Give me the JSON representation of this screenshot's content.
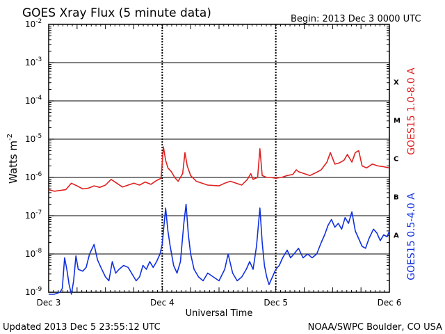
{
  "chart_data": {
    "type": "line",
    "title": "GOES Xray Flux (5 minute data)",
    "begin_label": "Begin:  2013 Dec 3 0000 UTC",
    "xlabel": "Universal Time",
    "ylabel": "Watts m",
    "ylabel_exponent": "-2",
    "x_unit": "days since 2013 Dec 3 0000 UTC",
    "xlim": [
      0,
      3
    ],
    "x_ticks": [
      {
        "label": "Dec 3",
        "value": 0
      },
      {
        "label": "Dec 4",
        "value": 1
      },
      {
        "label": "Dec 5",
        "value": 2
      },
      {
        "label": "Dec 6",
        "value": 3
      }
    ],
    "y_scale": "log",
    "ylim_exponent": [
      -9,
      -2
    ],
    "y_ticks": [
      {
        "base": "10",
        "exp": "-9",
        "value": -9
      },
      {
        "base": "10",
        "exp": "-8",
        "value": -8
      },
      {
        "base": "10",
        "exp": "-7",
        "value": -7
      },
      {
        "base": "10",
        "exp": "-6",
        "value": -6
      },
      {
        "base": "10",
        "exp": "-5",
        "value": -5
      },
      {
        "base": "10",
        "exp": "-4",
        "value": -4
      },
      {
        "base": "10",
        "exp": "-3",
        "value": -3
      },
      {
        "base": "10",
        "exp": "-2",
        "value": -2
      }
    ],
    "flare_classes": [
      {
        "label": "A",
        "value": -7.5
      },
      {
        "label": "B",
        "value": -6.5
      },
      {
        "label": "C",
        "value": -5.5
      },
      {
        "label": "M",
        "value": -4.5
      },
      {
        "label": "X",
        "value": -3.5
      }
    ],
    "series": [
      {
        "name": "GOES15 1.0-8.0 A",
        "color": "#e02020",
        "points": [
          [
            0.0,
            -6.32
          ],
          [
            0.05,
            -6.36
          ],
          [
            0.1,
            -6.34
          ],
          [
            0.15,
            -6.32
          ],
          [
            0.2,
            -6.15
          ],
          [
            0.25,
            -6.22
          ],
          [
            0.3,
            -6.3
          ],
          [
            0.35,
            -6.28
          ],
          [
            0.4,
            -6.22
          ],
          [
            0.45,
            -6.26
          ],
          [
            0.5,
            -6.2
          ],
          [
            0.55,
            -6.05
          ],
          [
            0.6,
            -6.15
          ],
          [
            0.65,
            -6.25
          ],
          [
            0.7,
            -6.2
          ],
          [
            0.75,
            -6.15
          ],
          [
            0.8,
            -6.2
          ],
          [
            0.85,
            -6.12
          ],
          [
            0.9,
            -6.18
          ],
          [
            0.95,
            -6.08
          ],
          [
            0.99,
            -6.02
          ],
          [
            1.01,
            -5.2
          ],
          [
            1.03,
            -5.55
          ],
          [
            1.05,
            -5.75
          ],
          [
            1.08,
            -5.85
          ],
          [
            1.11,
            -6.0
          ],
          [
            1.14,
            -6.1
          ],
          [
            1.18,
            -5.9
          ],
          [
            1.2,
            -5.35
          ],
          [
            1.22,
            -5.7
          ],
          [
            1.25,
            -5.95
          ],
          [
            1.3,
            -6.1
          ],
          [
            1.4,
            -6.2
          ],
          [
            1.5,
            -6.22
          ],
          [
            1.55,
            -6.15
          ],
          [
            1.6,
            -6.1
          ],
          [
            1.65,
            -6.15
          ],
          [
            1.7,
            -6.2
          ],
          [
            1.75,
            -6.05
          ],
          [
            1.78,
            -5.9
          ],
          [
            1.8,
            -6.05
          ],
          [
            1.84,
            -6.0
          ],
          [
            1.86,
            -5.25
          ],
          [
            1.88,
            -5.95
          ],
          [
            1.92,
            -6.0
          ],
          [
            1.95,
            -6.0
          ],
          [
            2.0,
            -6.02
          ],
          [
            2.05,
            -6.0
          ],
          [
            2.1,
            -5.95
          ],
          [
            2.15,
            -5.92
          ],
          [
            2.18,
            -5.8
          ],
          [
            2.2,
            -5.85
          ],
          [
            2.25,
            -5.9
          ],
          [
            2.3,
            -5.95
          ],
          [
            2.35,
            -5.88
          ],
          [
            2.4,
            -5.8
          ],
          [
            2.45,
            -5.6
          ],
          [
            2.48,
            -5.35
          ],
          [
            2.52,
            -5.65
          ],
          [
            2.56,
            -5.62
          ],
          [
            2.6,
            -5.55
          ],
          [
            2.63,
            -5.4
          ],
          [
            2.67,
            -5.6
          ],
          [
            2.7,
            -5.35
          ],
          [
            2.73,
            -5.3
          ],
          [
            2.76,
            -5.7
          ],
          [
            2.8,
            -5.75
          ],
          [
            2.85,
            -5.65
          ],
          [
            2.9,
            -5.7
          ],
          [
            2.95,
            -5.72
          ],
          [
            3.0,
            -5.75
          ]
        ]
      },
      {
        "name": "GOES15 0.5-4.0 A",
        "color": "#1030e0",
        "points": [
          [
            0.0,
            -9.05
          ],
          [
            0.05,
            -9.05
          ],
          [
            0.1,
            -9.0
          ],
          [
            0.12,
            -8.9
          ],
          [
            0.14,
            -8.1
          ],
          [
            0.16,
            -8.4
          ],
          [
            0.18,
            -8.8
          ],
          [
            0.2,
            -9.05
          ],
          [
            0.22,
            -8.7
          ],
          [
            0.24,
            -8.05
          ],
          [
            0.26,
            -8.4
          ],
          [
            0.3,
            -8.45
          ],
          [
            0.33,
            -8.35
          ],
          [
            0.36,
            -8.0
          ],
          [
            0.4,
            -7.75
          ],
          [
            0.43,
            -8.15
          ],
          [
            0.46,
            -8.35
          ],
          [
            0.5,
            -8.6
          ],
          [
            0.53,
            -8.7
          ],
          [
            0.56,
            -8.2
          ],
          [
            0.59,
            -8.5
          ],
          [
            0.62,
            -8.4
          ],
          [
            0.66,
            -8.3
          ],
          [
            0.7,
            -8.35
          ],
          [
            0.73,
            -8.5
          ],
          [
            0.77,
            -8.7
          ],
          [
            0.8,
            -8.6
          ],
          [
            0.83,
            -8.3
          ],
          [
            0.86,
            -8.4
          ],
          [
            0.89,
            -8.2
          ],
          [
            0.92,
            -8.35
          ],
          [
            0.95,
            -8.2
          ],
          [
            0.98,
            -8.0
          ],
          [
            1.0,
            -7.75
          ],
          [
            1.03,
            -6.8
          ],
          [
            1.05,
            -7.4
          ],
          [
            1.07,
            -7.8
          ],
          [
            1.1,
            -8.3
          ],
          [
            1.13,
            -8.5
          ],
          [
            1.16,
            -8.2
          ],
          [
            1.19,
            -7.2
          ],
          [
            1.21,
            -6.7
          ],
          [
            1.23,
            -7.5
          ],
          [
            1.25,
            -8.0
          ],
          [
            1.28,
            -8.4
          ],
          [
            1.32,
            -8.6
          ],
          [
            1.36,
            -8.7
          ],
          [
            1.4,
            -8.5
          ],
          [
            1.45,
            -8.6
          ],
          [
            1.5,
            -8.7
          ],
          [
            1.55,
            -8.4
          ],
          [
            1.58,
            -8.0
          ],
          [
            1.62,
            -8.5
          ],
          [
            1.66,
            -8.7
          ],
          [
            1.7,
            -8.6
          ],
          [
            1.74,
            -8.4
          ],
          [
            1.77,
            -8.2
          ],
          [
            1.8,
            -8.4
          ],
          [
            1.83,
            -7.8
          ],
          [
            1.86,
            -6.8
          ],
          [
            1.88,
            -7.7
          ],
          [
            1.9,
            -8.3
          ],
          [
            1.92,
            -8.6
          ],
          [
            1.94,
            -8.8
          ],
          [
            1.97,
            -8.6
          ],
          [
            2.0,
            -8.4
          ],
          [
            2.03,
            -8.3
          ],
          [
            2.06,
            -8.1
          ],
          [
            2.1,
            -7.9
          ],
          [
            2.13,
            -8.1
          ],
          [
            2.16,
            -8.0
          ],
          [
            2.2,
            -7.85
          ],
          [
            2.24,
            -8.1
          ],
          [
            2.28,
            -8.0
          ],
          [
            2.32,
            -8.1
          ],
          [
            2.36,
            -8.0
          ],
          [
            2.4,
            -7.7
          ],
          [
            2.43,
            -7.5
          ],
          [
            2.46,
            -7.25
          ],
          [
            2.49,
            -7.1
          ],
          [
            2.52,
            -7.3
          ],
          [
            2.55,
            -7.2
          ],
          [
            2.58,
            -7.35
          ],
          [
            2.61,
            -7.05
          ],
          [
            2.64,
            -7.2
          ],
          [
            2.67,
            -6.9
          ],
          [
            2.7,
            -7.4
          ],
          [
            2.73,
            -7.6
          ],
          [
            2.76,
            -7.8
          ],
          [
            2.79,
            -7.85
          ],
          [
            2.82,
            -7.6
          ],
          [
            2.86,
            -7.35
          ],
          [
            2.89,
            -7.45
          ],
          [
            2.92,
            -7.65
          ],
          [
            2.95,
            -7.5
          ],
          [
            2.98,
            -7.55
          ],
          [
            3.0,
            -7.4
          ]
        ]
      }
    ]
  },
  "footer": {
    "updated": "Updated 2013 Dec  5 23:55:12 UTC",
    "credit": "NOAA/SWPC Boulder, CO USA"
  }
}
